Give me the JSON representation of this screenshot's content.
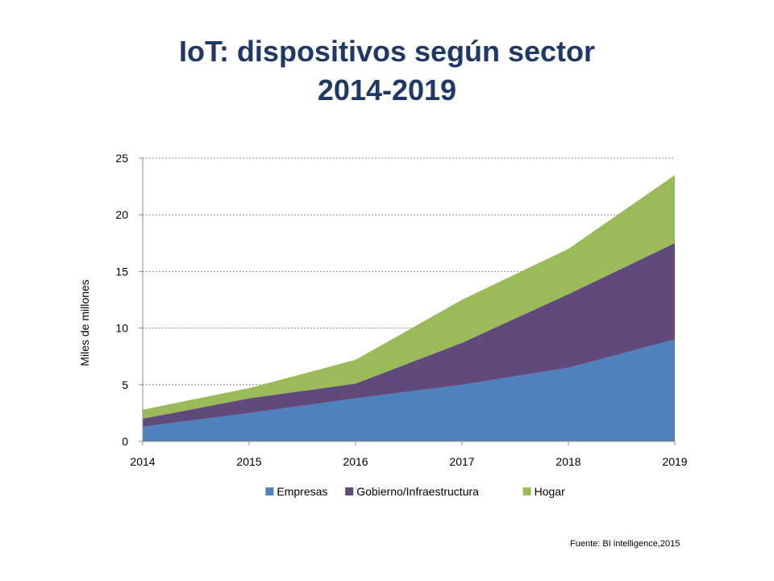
{
  "title_line1": "IoT: dispositivos según sector",
  "title_line2": "2014-2019",
  "source": "Fuente: BI intelligence,2015",
  "chart_data": {
    "type": "area",
    "stacked": true,
    "title": "IoT: dispositivos según sector 2014-2019",
    "ylabel": "Miles de millones",
    "xlabel": "",
    "x": [
      2014,
      2015,
      2016,
      2017,
      2018,
      2019
    ],
    "ylim": [
      0,
      25
    ],
    "yticks": [
      0,
      5,
      10,
      15,
      20,
      25
    ],
    "grid": true,
    "legend": "bottom",
    "series": [
      {
        "name": "Empresas",
        "color": "#4f81bd",
        "values": [
          1.3,
          2.5,
          3.8,
          5.0,
          6.5,
          9.0
        ]
      },
      {
        "name": "Gobierno/Infraestructura",
        "color": "#604a7b",
        "values": [
          0.7,
          1.3,
          1.3,
          3.7,
          6.5,
          8.5
        ]
      },
      {
        "name": "Hogar",
        "color": "#9bbb59",
        "values": [
          0.8,
          0.9,
          2.1,
          3.8,
          4.0,
          6.0
        ]
      }
    ]
  }
}
